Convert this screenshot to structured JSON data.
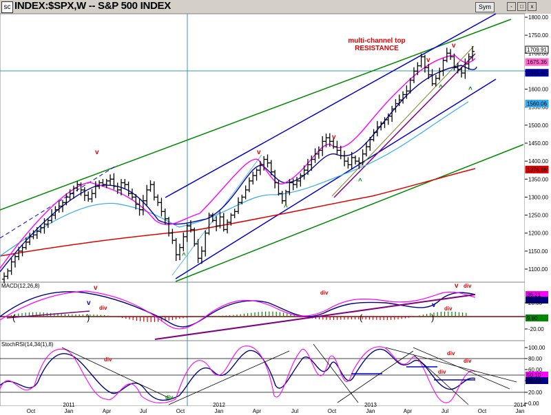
{
  "window": {
    "title": "INDEX:$SPX,W -- S&P 500 INDEX",
    "sym_button": "Sym",
    "min_glyph": "-",
    "max_glyph": "□",
    "close_glyph": "x",
    "app_icon": "sc"
  },
  "chart_data": [
    {
      "type": "candlestick",
      "title": "INDEX:$SPX,W -- S&P 500 INDEX",
      "panel": "price",
      "ylim": [
        1050,
        1800
      ],
      "y_ticks": [
        "1800.00",
        "1750.00",
        "1700.00",
        "1650.00",
        "1600.00",
        "1550.00",
        "1500.00",
        "1450.00",
        "1400.00",
        "1350.00",
        "1300.00",
        "1250.00",
        "1200.00",
        "1150.00",
        "1100.00"
      ],
      "x_tick_labels": [
        "Oct",
        "2011\nJan",
        "Apr",
        "Jul",
        "Oct",
        "2012\nJan",
        "Apr",
        "Jul",
        "Oct",
        "2013\nJan",
        "Apr",
        "Jul",
        "Oct",
        "2014\nJan"
      ],
      "close_series": [
        1080,
        1095,
        1120,
        1135,
        1150,
        1160,
        1175,
        1190,
        1195,
        1205,
        1215,
        1225,
        1235,
        1250,
        1265,
        1275,
        1285,
        1300,
        1310,
        1325,
        1335,
        1320,
        1305,
        1295,
        1310,
        1330,
        1340,
        1335,
        1345,
        1350,
        1330,
        1320,
        1340,
        1335,
        1310,
        1300,
        1280,
        1265,
        1290,
        1320,
        1335,
        1300,
        1285,
        1260,
        1240,
        1200,
        1180,
        1140,
        1160,
        1190,
        1220,
        1210,
        1170,
        1130,
        1150,
        1200,
        1250,
        1235,
        1220,
        1245,
        1210,
        1230,
        1250,
        1260,
        1285,
        1300,
        1320,
        1345,
        1360,
        1375,
        1390,
        1405,
        1395,
        1370,
        1340,
        1310,
        1290,
        1315,
        1340,
        1335,
        1345,
        1360,
        1375,
        1390,
        1405,
        1420,
        1430,
        1455,
        1465,
        1455,
        1440,
        1430,
        1415,
        1400,
        1390,
        1410,
        1400,
        1395,
        1420,
        1440,
        1460,
        1480,
        1495,
        1505,
        1515,
        1525,
        1545,
        1560,
        1570,
        1585,
        1595,
        1625,
        1650,
        1665,
        1690,
        1660,
        1640,
        1615,
        1630,
        1650,
        1680,
        1700,
        1690,
        1660,
        1655,
        1645,
        1670,
        1690,
        1705
      ],
      "price_labels": [
        {
          "value": "1709.91",
          "color": "#000000"
        },
        {
          "value": "1675.36",
          "color": "#ff66cc"
        },
        {
          "value": "1645.60",
          "color": "#0000aa"
        },
        {
          "value": "1560.06",
          "color": "#33aaee"
        },
        {
          "value": "1376.66",
          "color": "#dd0000"
        }
      ],
      "moving_average_colors": [
        "#ff00ff",
        "#0000aa",
        "#33aaee",
        "#dd0000"
      ],
      "annotations": [
        {
          "text": "multi-channel top",
          "color": "#dd0000"
        },
        {
          "text": "RESISTANCE",
          "color": "#dd0000"
        },
        {
          "text": "v",
          "color": "#dd0000"
        },
        {
          "text": "^",
          "color": "#008800"
        }
      ]
    },
    {
      "type": "line",
      "panel": "macd",
      "title": "MACD(12,26,8)",
      "y_ticks": [
        "20.00",
        "0.00",
        "-20.00"
      ],
      "labels": [
        {
          "value": "36.21",
          "color": "#ff00ff"
        },
        {
          "value": "26.42",
          "color": "#000080"
        },
        {
          "value": "9.80",
          "color": "#008800"
        }
      ],
      "annotations": [
        "v",
        "v",
        "div",
        "div",
        "v",
        "div",
        "v",
        "div"
      ]
    },
    {
      "type": "line",
      "panel": "stochrsi",
      "title": "StochRSI(14,34(1),8)",
      "y_ticks": [
        "100.00",
        "80.00",
        "60.00",
        "40.00",
        "20.00",
        "0.00"
      ],
      "labels": [
        {
          "value": "50.10",
          "color": "#ff00ff"
        },
        {
          "value": "36.40",
          "color": "#000080"
        }
      ],
      "annotations": [
        "div",
        "div",
        "div",
        "div",
        "div"
      ]
    }
  ]
}
